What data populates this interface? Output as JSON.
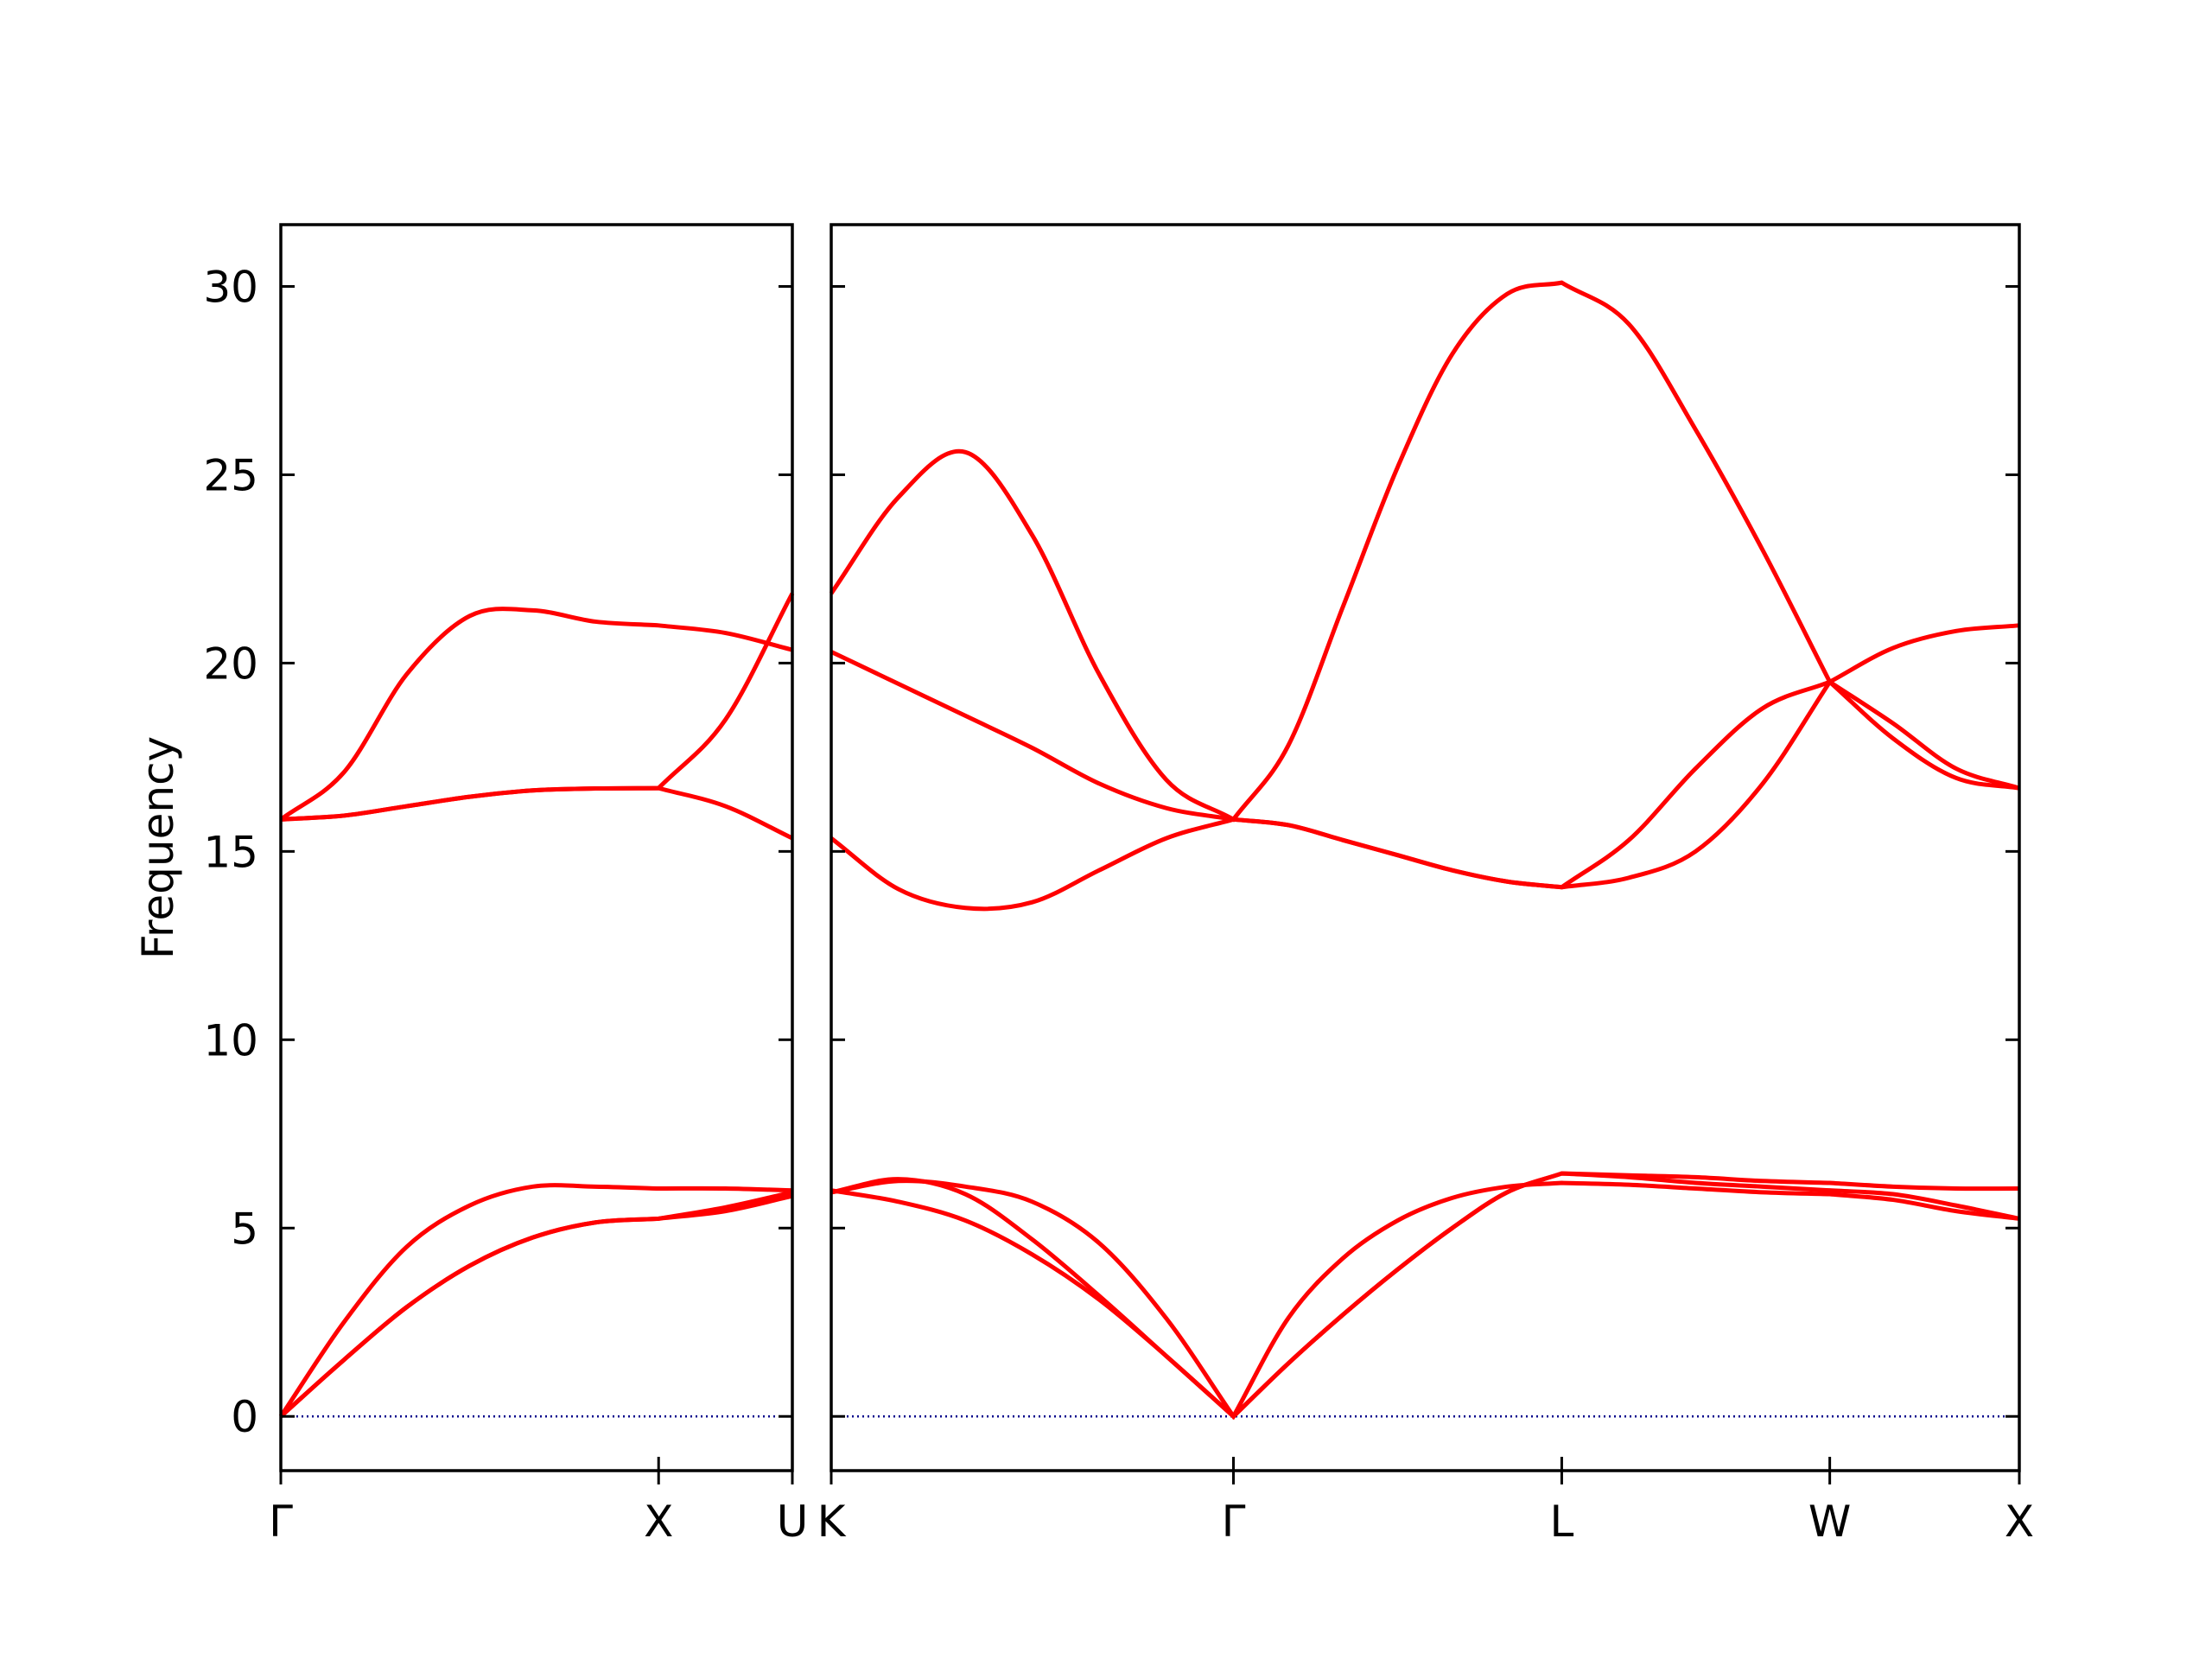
{
  "chart_data": [
    {
      "type": "line",
      "ylabel": "Frequency",
      "color": "#ff0000",
      "hline": 0,
      "hline_color": "#00008b",
      "xlim": [
        0,
        1.354
      ],
      "xticks": [
        {
          "value": 0,
          "label": "Γ"
        },
        {
          "value": 1,
          "label": "X"
        },
        {
          "value": 1.354,
          "label": "U"
        }
      ],
      "ylim": [
        -1.44,
        31.64
      ],
      "yticks": [
        0,
        5,
        10,
        15,
        20,
        25,
        30
      ],
      "x": [
        0,
        0.167,
        0.333,
        0.5,
        0.667,
        0.833,
        1,
        1.177,
        1.354
      ],
      "series": [
        {
          "values": [
            0,
            1.5,
            2.9,
            4.0,
            4.75,
            5.15,
            5.25,
            5.45,
            5.85
          ]
        },
        {
          "values": [
            0,
            1.5,
            2.9,
            4.0,
            4.75,
            5.15,
            5.25,
            5.55,
            5.95
          ]
        },
        {
          "values": [
            0,
            2.5,
            4.5,
            5.6,
            6.1,
            6.1,
            6.05,
            6.05,
            6.0
          ]
        },
        {
          "values": [
            15.85,
            15.95,
            16.2,
            16.45,
            16.62,
            16.67,
            16.68,
            16.2,
            15.35
          ]
        },
        {
          "values": [
            15.85,
            15.95,
            16.2,
            16.45,
            16.62,
            16.67,
            16.68,
            18.5,
            21.85
          ]
        },
        {
          "values": [
            15.85,
            17.1,
            19.7,
            21.25,
            21.4,
            21.1,
            21.0,
            20.8,
            20.35
          ]
        }
      ]
    },
    {
      "type": "line",
      "color": "#ff0000",
      "hline": 0,
      "hline_color": "#00008b",
      "xlim": [
        0,
        3.134
      ],
      "xticks": [
        {
          "value": 0,
          "label": "K"
        },
        {
          "value": 1.061,
          "label": "Γ"
        },
        {
          "value": 1.927,
          "label": "L"
        },
        {
          "value": 2.634,
          "label": "W"
        },
        {
          "value": 3.134,
          "label": "X"
        }
      ],
      "ylim": [
        -1.44,
        31.64
      ],
      "yticks": [
        0,
        5,
        10,
        15,
        20,
        25,
        30
      ],
      "x": [
        0,
        0.177,
        0.354,
        0.53,
        0.707,
        0.884,
        1.061,
        1.205,
        1.35,
        1.494,
        1.638,
        1.783,
        1.927,
        2.104,
        2.28,
        2.457,
        2.634,
        2.801,
        2.967,
        3.134
      ],
      "series": [
        {
          "values": [
            5.95,
            6.25,
            6.1,
            5.7,
            4.6,
            2.6,
            0,
            1.4,
            2.7,
            3.9,
            5.0,
            5.95,
            6.45,
            6.4,
            6.35,
            6.25,
            6.2,
            6.1,
            6.05,
            6.05
          ]
        },
        {
          "values": [
            5.95,
            6.3,
            5.9,
            4.7,
            3.2,
            1.6,
            0,
            1.4,
            2.7,
            3.9,
            5.0,
            5.95,
            6.45,
            6.35,
            6.2,
            6.1,
            6.0,
            5.9,
            5.6,
            5.25
          ]
        },
        {
          "values": [
            6.0,
            5.7,
            5.2,
            4.3,
            3.1,
            1.6,
            0,
            2.6,
            4.2,
            5.2,
            5.8,
            6.1,
            6.2,
            6.15,
            6.05,
            5.95,
            5.9,
            5.75,
            5.45,
            5.25
          ]
        },
        {
          "values": [
            15.35,
            14.0,
            13.5,
            13.65,
            14.5,
            15.35,
            15.85,
            15.7,
            15.3,
            14.9,
            14.5,
            14.2,
            14.05,
            14.3,
            15.0,
            16.8,
            19.5,
            18.0,
            16.95,
            16.68
          ]
        },
        {
          "values": [
            20.3,
            19.45,
            18.6,
            17.75,
            16.8,
            16.15,
            15.85,
            15.7,
            15.3,
            14.9,
            14.5,
            14.2,
            14.05,
            15.3,
            17.2,
            18.8,
            19.5,
            18.4,
            17.2,
            16.68
          ]
        },
        {
          "values": [
            21.85,
            24.4,
            25.6,
            23.4,
            19.7,
            16.9,
            15.85,
            17.8,
            21.5,
            25.2,
            28.2,
            29.8,
            30.1,
            29.0,
            26.2,
            23.0,
            19.5,
            20.4,
            20.85,
            21.0
          ]
        }
      ]
    }
  ]
}
